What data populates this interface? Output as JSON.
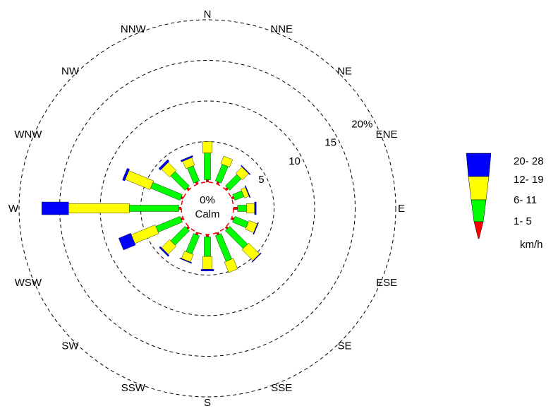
{
  "chart_data": {
    "type": "wind-rose",
    "directions": [
      "N",
      "NNE",
      "NE",
      "ENE",
      "E",
      "ESE",
      "SE",
      "SSE",
      "S",
      "SSW",
      "SW",
      "WSW",
      "W",
      "WNW",
      "NW",
      "NNW"
    ],
    "ring_values": [
      5,
      10,
      15,
      20
    ],
    "ring_labels": [
      "5",
      "10",
      "15",
      "20%"
    ],
    "calm_label": "Calm",
    "calm_value_label": "0%",
    "speed_bins": [
      {
        "label": "1- 5",
        "color": "#ff0000"
      },
      {
        "label": "6- 11",
        "color": "#00ff00"
      },
      {
        "label": "12- 19",
        "color": "#ffff00"
      },
      {
        "label": "20- 28",
        "color": "#0000ff"
      }
    ],
    "unit": "km/h",
    "series": [
      {
        "name": "1- 5",
        "values": [
          0.3,
          0.3,
          0.3,
          0.3,
          0.5,
          0.3,
          0.3,
          0.3,
          0.3,
          0.3,
          0.3,
          0.3,
          0.3,
          0.3,
          0.3,
          0.3
        ]
      },
      {
        "name": "6- 11",
        "values": [
          3.3,
          2.2,
          2.0,
          1.2,
          1.1,
          1.8,
          3.1,
          3.4,
          2.4,
          2.4,
          2.5,
          3.2,
          6.1,
          3.9,
          2.5,
          2.0
        ]
      },
      {
        "name": "12- 19",
        "values": [
          1.4,
          1.0,
          1.1,
          0.6,
          1.0,
          1.1,
          1.9,
          1.4,
          1.6,
          1.0,
          1.4,
          3.2,
          7.5,
          3.3,
          1.4,
          1.0
        ]
      },
      {
        "name": "20- 28",
        "values": [
          0.0,
          0.0,
          0.1,
          0.1,
          0.2,
          0.1,
          0.1,
          0.0,
          0.2,
          0.1,
          0.2,
          1.6,
          3.3,
          0.3,
          0.3,
          0.2
        ]
      }
    ],
    "grid": true
  }
}
